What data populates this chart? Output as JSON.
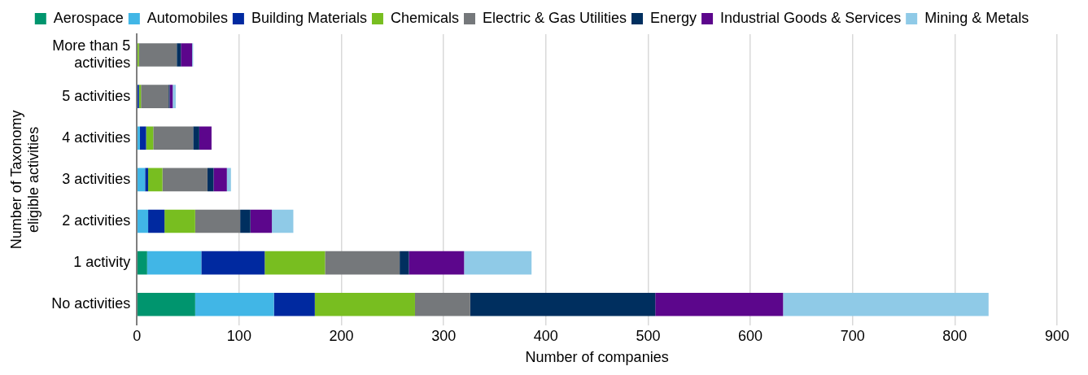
{
  "chart_data": {
    "type": "bar",
    "orientation": "horizontal",
    "stacked": true,
    "xlabel": "Number of companies",
    "ylabel": "Number of Taxonomy eligible activities",
    "categories": [
      "More than 5 activities",
      "5 activities",
      "4 activities",
      "3 activities",
      "2 activities",
      "1 activity",
      "No activities"
    ],
    "xlim": [
      0,
      900
    ],
    "xticks": [
      0,
      100,
      200,
      300,
      400,
      500,
      600,
      700,
      800,
      900
    ],
    "grid": "x",
    "legend": "top",
    "series": [
      {
        "name": "Aerospace",
        "color": "#00956e",
        "values": [
          0,
          0,
          0,
          0,
          null,
          10,
          57
        ]
      },
      {
        "name": "Automobiles",
        "color": "#41b6e6",
        "values": [
          0,
          null,
          3,
          8,
          11,
          53,
          77
        ]
      },
      {
        "name": "Building Materials",
        "color": "#0029a0",
        "values": [
          0,
          2,
          6,
          3,
          16,
          62,
          40
        ]
      },
      {
        "name": "Chemicals",
        "color": "#78be20",
        "values": [
          2,
          2,
          7,
          14,
          30,
          59,
          98
        ]
      },
      {
        "name": "Electric & Gas Utilities",
        "color": "#75787b",
        "values": [
          37,
          27,
          39,
          44,
          44,
          73,
          54
        ]
      },
      {
        "name": "Energy",
        "color": "#002f5f",
        "values": [
          4,
          1,
          6,
          6,
          10,
          9,
          181
        ]
      },
      {
        "name": "Industrial Goods & Services",
        "color": "#5c068c",
        "values": [
          11,
          3,
          12,
          13,
          21,
          54,
          125
        ]
      },
      {
        "name": "Mining & Metals",
        "color": "#8fcae7",
        "values": [
          1,
          3,
          0,
          4,
          21,
          66,
          201
        ]
      }
    ]
  }
}
